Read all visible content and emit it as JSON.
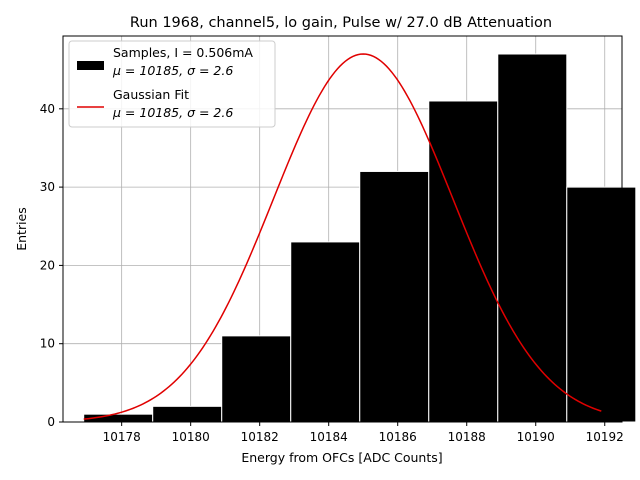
{
  "chart_data": {
    "type": "bar",
    "title": "Run 1968, channel5, lo gain, Pulse w/ 27.0 dB Attenuation",
    "xlabel": "Energy from OFCs [ADC Counts]",
    "ylabel": "Entries",
    "xlim": [
      10176.3,
      10192.5
    ],
    "ylim": [
      0,
      49.3
    ],
    "grid": true,
    "xticks": [
      10178,
      10180,
      10182,
      10184,
      10186,
      10188,
      10190,
      10192
    ],
    "xtick_labels": [
      "10178",
      "10180",
      "10182",
      "10184",
      "10186",
      "10188",
      "10190",
      "10192"
    ],
    "yticks": [
      0,
      10,
      20,
      30,
      40
    ],
    "ytick_labels": [
      "0",
      "10",
      "20",
      "30",
      "40"
    ],
    "histogram": {
      "name": "Samples, I = 0.506mA",
      "stats": "μ = 10185, σ = 2.6",
      "color": "#000000",
      "edge_color": "#ffffff",
      "bin_edges": [
        10176.9,
        10178.9,
        10180.9,
        10182.9,
        10184.9,
        10186.9,
        10188.9,
        10190.9,
        10192.9
      ],
      "bins": [
        {
          "x0": 10176.9,
          "x1": 10178.9,
          "count": 1
        },
        {
          "x0": 10178.9,
          "x1": 10180.9,
          "count": 2
        },
        {
          "x0": 10180.9,
          "x1": 10182.9,
          "count": 11
        },
        {
          "x0": 10182.9,
          "x1": 10184.9,
          "count": 23
        },
        {
          "x0": 10184.9,
          "x1": 10186.9,
          "count": 32
        },
        {
          "x0": 10186.9,
          "x1": 10188.9,
          "count": 41
        },
        {
          "x0": 10188.9,
          "x1": 10190.9,
          "count": 47
        },
        {
          "x0": 10190.9,
          "x1": 10192.9,
          "count": 30
        }
      ]
    },
    "fit": {
      "name": "Gaussian Fit",
      "stats": "μ = 10185, σ = 2.6",
      "type": "line",
      "color": "#e00000",
      "amplitude": 47,
      "mean": 10185.0,
      "sigma": 2.6,
      "x_range": [
        10176.9,
        10191.9
      ]
    },
    "legend": {
      "placement": "top-left",
      "entries": [
        {
          "line1": "Samples, I = 0.506mA",
          "line2": "μ = 10185, σ = 2.6",
          "marker": "patch"
        },
        {
          "line1": "Gaussian Fit",
          "line2": "μ = 10185, σ = 2.6",
          "marker": "line"
        }
      ]
    }
  }
}
